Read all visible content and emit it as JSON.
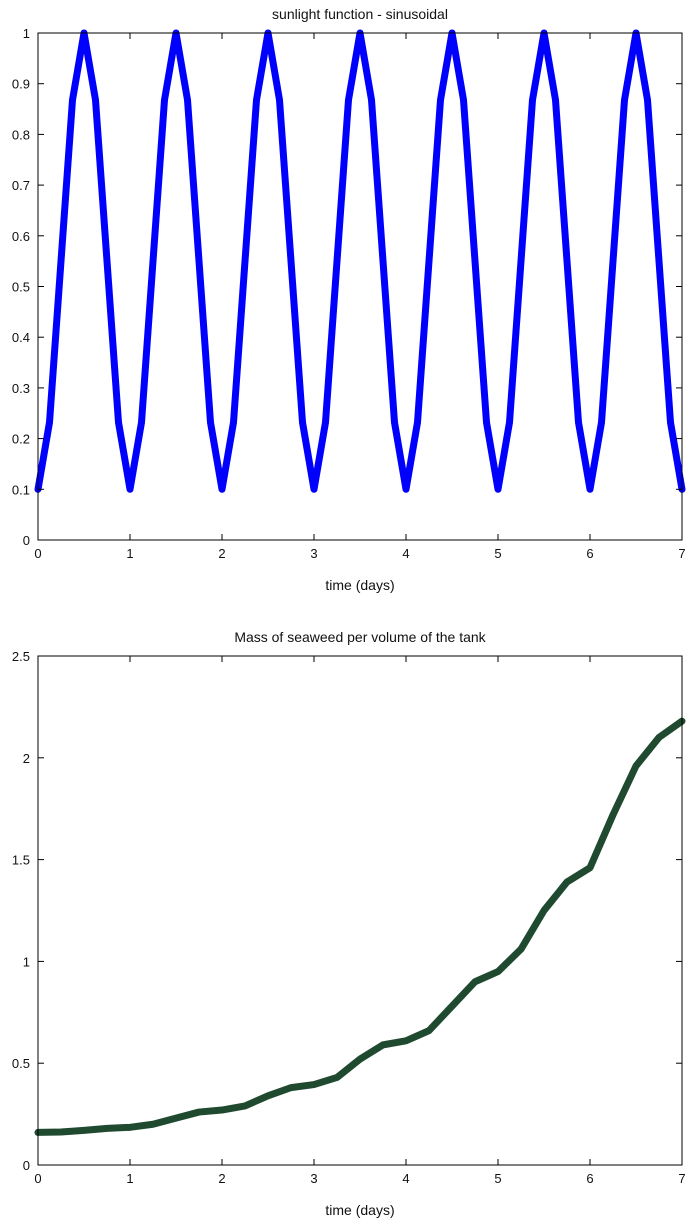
{
  "chart_data": [
    {
      "type": "line",
      "title": "sunlight function - sinusoidal",
      "xlabel": "time (days)",
      "ylabel": "",
      "xlim": [
        0,
        7
      ],
      "ylim": [
        0,
        1
      ],
      "xticks": [
        0,
        1,
        2,
        3,
        4,
        5,
        6,
        7
      ],
      "yticks": [
        0,
        0.1,
        0.2,
        0.3,
        0.4,
        0.5,
        0.6,
        0.7,
        0.8,
        0.9,
        1
      ],
      "xtick_labels": [
        "0",
        "1",
        "2",
        "3",
        "4",
        "5",
        "6",
        "7"
      ],
      "ytick_labels": [
        "0",
        "0.1",
        "0.2",
        "0.3",
        "0.4",
        "0.5",
        "0.6",
        "0.7",
        "0.8",
        "0.9",
        "1"
      ],
      "grid": false,
      "legend": "none",
      "series": [
        {
          "color": "#0000ff",
          "x": [
            0,
            0.125,
            0.25,
            0.375,
            0.5,
            0.625,
            0.75,
            0.875,
            1,
            1.125,
            1.25,
            1.375,
            1.5,
            1.625,
            1.75,
            1.875,
            2,
            2.125,
            2.25,
            2.375,
            2.5,
            2.625,
            2.75,
            2.875,
            3,
            3.125,
            3.25,
            3.375,
            3.5,
            3.625,
            3.75,
            3.875,
            4,
            4.125,
            4.25,
            4.375,
            4.5,
            4.625,
            4.75,
            4.875,
            5,
            5.125,
            5.25,
            5.375,
            5.5,
            5.625,
            5.75,
            5.875,
            6,
            6.125,
            6.25,
            6.375,
            6.5,
            6.625,
            6.75,
            6.875,
            7
          ],
          "y": [
            0.1,
            0.232,
            0.55,
            0.868,
            1,
            0.868,
            0.55,
            0.232,
            0.1,
            0.232,
            0.55,
            0.868,
            1,
            0.868,
            0.55,
            0.232,
            0.1,
            0.232,
            0.55,
            0.868,
            1,
            0.868,
            0.55,
            0.232,
            0.1,
            0.232,
            0.55,
            0.868,
            1,
            0.868,
            0.55,
            0.232,
            0.1,
            0.232,
            0.55,
            0.868,
            1,
            0.868,
            0.55,
            0.232,
            0.1,
            0.232,
            0.55,
            0.868,
            1,
            0.868,
            0.55,
            0.232,
            0.1,
            0.232,
            0.55,
            0.868,
            1,
            0.868,
            0.55,
            0.232,
            0.1
          ]
        }
      ]
    },
    {
      "type": "line",
      "title": "Mass of seaweed per volume of the tank",
      "xlabel": "time (days)",
      "ylabel": "",
      "xlim": [
        0,
        7
      ],
      "ylim": [
        0,
        2.5
      ],
      "xticks": [
        0,
        1,
        2,
        3,
        4,
        5,
        6,
        7
      ],
      "yticks": [
        0,
        0.5,
        1,
        1.5,
        2,
        2.5
      ],
      "xtick_labels": [
        "0",
        "1",
        "2",
        "3",
        "4",
        "5",
        "6",
        "7"
      ],
      "ytick_labels": [
        "0",
        "0.5",
        "1",
        "1.5",
        "2",
        "2.5"
      ],
      "grid": false,
      "legend": "none",
      "series": [
        {
          "color": "#1f4a2f",
          "x": [
            0,
            0.25,
            0.5,
            0.75,
            1,
            1.25,
            1.5,
            1.75,
            2,
            2.25,
            2.5,
            2.75,
            3,
            3.25,
            3.5,
            3.75,
            4,
            4.25,
            4.5,
            4.75,
            5,
            5.25,
            5.5,
            5.75,
            6,
            6.25,
            6.5,
            6.75,
            7
          ],
          "y": [
            0.16,
            0.162,
            0.17,
            0.18,
            0.185,
            0.2,
            0.23,
            0.26,
            0.27,
            0.29,
            0.34,
            0.38,
            0.395,
            0.43,
            0.52,
            0.59,
            0.61,
            0.66,
            0.78,
            0.9,
            0.95,
            1.06,
            1.25,
            1.39,
            1.46,
            1.72,
            1.96,
            2.1,
            2.18
          ]
        }
      ]
    }
  ]
}
